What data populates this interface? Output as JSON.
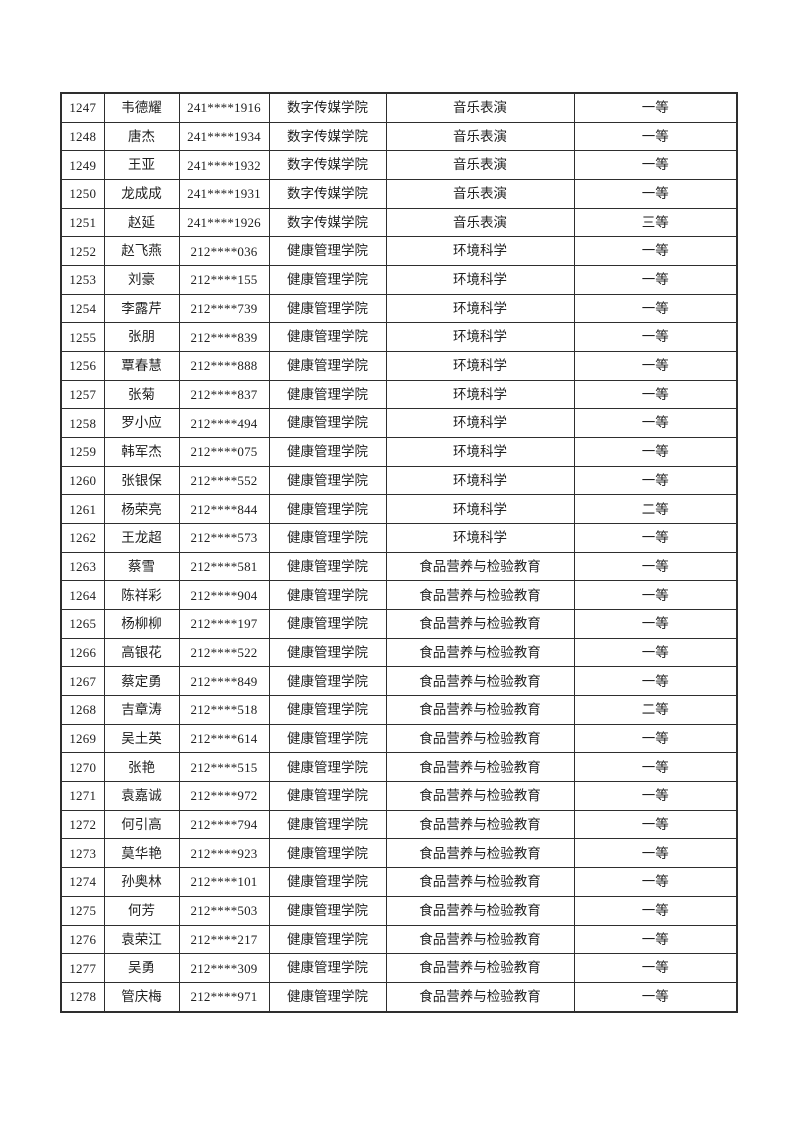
{
  "page": {
    "type": "scanned-award-list-page",
    "background_color": "#ffffff",
    "border_color": "#2e2e2e",
    "text_color": "#1f1f1f"
  },
  "table": {
    "column_keys": [
      "no",
      "name",
      "student_id",
      "college",
      "major",
      "award"
    ],
    "rows": [
      {
        "no": "1247",
        "name": "韦德耀",
        "student_id": "241****1916",
        "college": "数字传媒学院",
        "major": "音乐表演",
        "award": "一等"
      },
      {
        "no": "1248",
        "name": "唐杰",
        "student_id": "241****1934",
        "college": "数字传媒学院",
        "major": "音乐表演",
        "award": "一等"
      },
      {
        "no": "1249",
        "name": "王亚",
        "student_id": "241****1932",
        "college": "数字传媒学院",
        "major": "音乐表演",
        "award": "一等"
      },
      {
        "no": "1250",
        "name": "龙成成",
        "student_id": "241****1931",
        "college": "数字传媒学院",
        "major": "音乐表演",
        "award": "一等"
      },
      {
        "no": "1251",
        "name": "赵延",
        "student_id": "241****1926",
        "college": "数字传媒学院",
        "major": "音乐表演",
        "award": "三等"
      },
      {
        "no": "1252",
        "name": "赵飞燕",
        "student_id": "212****036",
        "college": "健康管理学院",
        "major": "环境科学",
        "award": "一等"
      },
      {
        "no": "1253",
        "name": "刘豪",
        "student_id": "212****155",
        "college": "健康管理学院",
        "major": "环境科学",
        "award": "一等"
      },
      {
        "no": "1254",
        "name": "李露芹",
        "student_id": "212****739",
        "college": "健康管理学院",
        "major": "环境科学",
        "award": "一等"
      },
      {
        "no": "1255",
        "name": "张朋",
        "student_id": "212****839",
        "college": "健康管理学院",
        "major": "环境科学",
        "award": "一等"
      },
      {
        "no": "1256",
        "name": "覃春慧",
        "student_id": "212****888",
        "college": "健康管理学院",
        "major": "环境科学",
        "award": "一等"
      },
      {
        "no": "1257",
        "name": "张菊",
        "student_id": "212****837",
        "college": "健康管理学院",
        "major": "环境科学",
        "award": "一等"
      },
      {
        "no": "1258",
        "name": "罗小应",
        "student_id": "212****494",
        "college": "健康管理学院",
        "major": "环境科学",
        "award": "一等"
      },
      {
        "no": "1259",
        "name": "韩军杰",
        "student_id": "212****075",
        "college": "健康管理学院",
        "major": "环境科学",
        "award": "一等"
      },
      {
        "no": "1260",
        "name": "张银保",
        "student_id": "212****552",
        "college": "健康管理学院",
        "major": "环境科学",
        "award": "一等"
      },
      {
        "no": "1261",
        "name": "杨荣亮",
        "student_id": "212****844",
        "college": "健康管理学院",
        "major": "环境科学",
        "award": "二等"
      },
      {
        "no": "1262",
        "name": "王龙超",
        "student_id": "212****573",
        "college": "健康管理学院",
        "major": "环境科学",
        "award": "一等"
      },
      {
        "no": "1263",
        "name": "蔡雪",
        "student_id": "212****581",
        "college": "健康管理学院",
        "major": "食品营养与检验教育",
        "award": "一等"
      },
      {
        "no": "1264",
        "name": "陈祥彩",
        "student_id": "212****904",
        "college": "健康管理学院",
        "major": "食品营养与检验教育",
        "award": "一等"
      },
      {
        "no": "1265",
        "name": "杨柳柳",
        "student_id": "212****197",
        "college": "健康管理学院",
        "major": "食品营养与检验教育",
        "award": "一等"
      },
      {
        "no": "1266",
        "name": "高银花",
        "student_id": "212****522",
        "college": "健康管理学院",
        "major": "食品营养与检验教育",
        "award": "一等"
      },
      {
        "no": "1267",
        "name": "蔡定勇",
        "student_id": "212****849",
        "college": "健康管理学院",
        "major": "食品营养与检验教育",
        "award": "一等"
      },
      {
        "no": "1268",
        "name": "吉章涛",
        "student_id": "212****518",
        "college": "健康管理学院",
        "major": "食品营养与检验教育",
        "award": "二等"
      },
      {
        "no": "1269",
        "name": "吴土英",
        "student_id": "212****614",
        "college": "健康管理学院",
        "major": "食品营养与检验教育",
        "award": "一等"
      },
      {
        "no": "1270",
        "name": "张艳",
        "student_id": "212****515",
        "college": "健康管理学院",
        "major": "食品营养与检验教育",
        "award": "一等"
      },
      {
        "no": "1271",
        "name": "袁嘉诚",
        "student_id": "212****972",
        "college": "健康管理学院",
        "major": "食品营养与检验教育",
        "award": "一等"
      },
      {
        "no": "1272",
        "name": "何引高",
        "student_id": "212****794",
        "college": "健康管理学院",
        "major": "食品营养与检验教育",
        "award": "一等"
      },
      {
        "no": "1273",
        "name": "莫华艳",
        "student_id": "212****923",
        "college": "健康管理学院",
        "major": "食品营养与检验教育",
        "award": "一等"
      },
      {
        "no": "1274",
        "name": "孙奥林",
        "student_id": "212****101",
        "college": "健康管理学院",
        "major": "食品营养与检验教育",
        "award": "一等"
      },
      {
        "no": "1275",
        "name": "何芳",
        "student_id": "212****503",
        "college": "健康管理学院",
        "major": "食品营养与检验教育",
        "award": "一等"
      },
      {
        "no": "1276",
        "name": "袁荣江",
        "student_id": "212****217",
        "college": "健康管理学院",
        "major": "食品营养与检验教育",
        "award": "一等"
      },
      {
        "no": "1277",
        "name": "吴勇",
        "student_id": "212****309",
        "college": "健康管理学院",
        "major": "食品营养与检验教育",
        "award": "一等"
      },
      {
        "no": "1278",
        "name": "管庆梅",
        "student_id": "212****971",
        "college": "健康管理学院",
        "major": "食品营养与检验教育",
        "award": "一等"
      }
    ]
  }
}
